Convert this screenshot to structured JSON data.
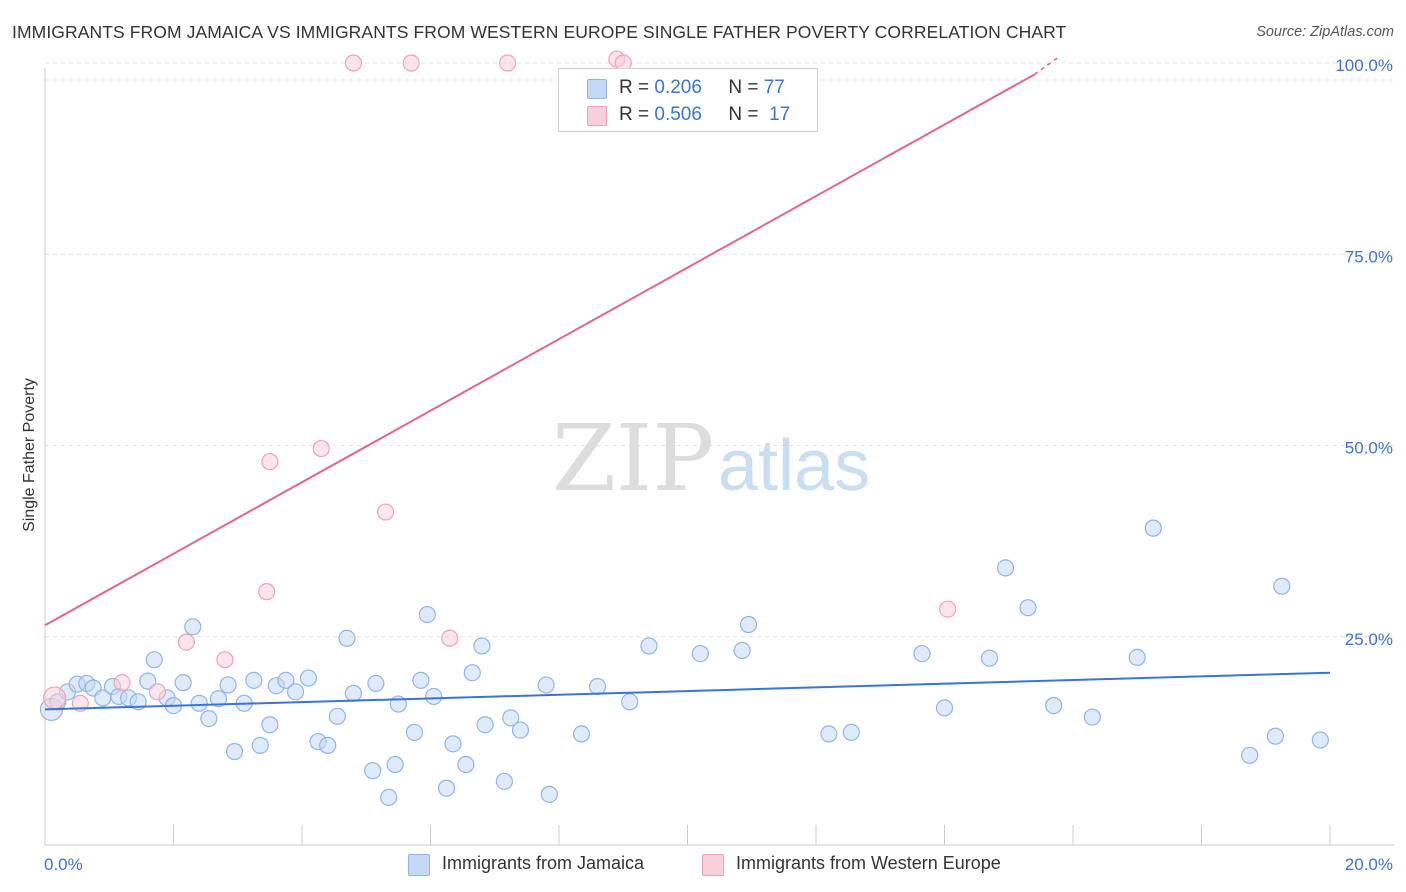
{
  "title": "IMMIGRANTS FROM JAMAICA VS IMMIGRANTS FROM WESTERN EUROPE SINGLE FATHER POVERTY CORRELATION CHART",
  "source": "Source: ZipAtlas.com",
  "watermark": {
    "zip": "ZIP",
    "atlas": "atlas"
  },
  "legend": {
    "rows": [
      {
        "r_label": "R =",
        "r_value": "0.206",
        "n_label": "N =",
        "n_value": "77",
        "color": "#8fb5e8",
        "fill": "#c4d9f5"
      },
      {
        "r_label": "R =",
        "r_value": "0.506",
        "n_label": "N =",
        "n_value": "17",
        "color": "#f2a0b8",
        "fill": "#f9cfdc"
      }
    ]
  },
  "bottom_legend": [
    {
      "label": "Immigrants from Jamaica",
      "color": "#8fb5e8",
      "fill": "#c4d9f5"
    },
    {
      "label": "Immigrants from Western Europe",
      "color": "#f2a0b8",
      "fill": "#f9cfdc"
    }
  ],
  "chart_data": {
    "type": "scatter",
    "title": "IMMIGRANTS FROM JAMAICA VS IMMIGRANTS FROM WESTERN EUROPE SINGLE FATHER POVERTY CORRELATION CHART",
    "xlabel": "",
    "ylabel": "Single Father Poverty",
    "xlim": [
      0,
      20
    ],
    "ylim": [
      0,
      100
    ],
    "x_tick_labels": [
      "0.0%",
      "20.0%"
    ],
    "y_tick_labels": [
      "25.0%",
      "50.0%",
      "75.0%",
      "100.0%"
    ],
    "y_ticks": [
      25,
      50,
      75,
      100
    ],
    "x_minor_ticks": [
      2,
      4,
      6,
      8,
      10,
      12,
      14,
      16,
      18,
      20
    ],
    "grid": true,
    "series": [
      {
        "name": "Immigrants from Jamaica",
        "color": "#3b74d1",
        "marker_stroke": "#8fb5e8",
        "marker_fill": "#c4d9f5",
        "trend": {
          "x": [
            0,
            20
          ],
          "y": [
            15.5,
            20.3
          ]
        },
        "points": [
          [
            0.1,
            15.5
          ],
          [
            0.2,
            16.5
          ],
          [
            0.35,
            17.8
          ],
          [
            0.5,
            18.8
          ],
          [
            0.65,
            18.9
          ],
          [
            0.75,
            18.3
          ],
          [
            0.9,
            17.0
          ],
          [
            1.05,
            18.5
          ],
          [
            1.15,
            17.2
          ],
          [
            1.3,
            17.0
          ],
          [
            1.45,
            16.5
          ],
          [
            1.6,
            19.2
          ],
          [
            1.7,
            22.0
          ],
          [
            1.9,
            17.0
          ],
          [
            2.0,
            16.0
          ],
          [
            2.15,
            19.0
          ],
          [
            2.3,
            26.3
          ],
          [
            2.4,
            16.3
          ],
          [
            2.55,
            14.3
          ],
          [
            2.7,
            16.9
          ],
          [
            2.85,
            18.7
          ],
          [
            2.95,
            10.0
          ],
          [
            3.1,
            16.3
          ],
          [
            3.25,
            19.3
          ],
          [
            3.35,
            10.8
          ],
          [
            3.5,
            13.5
          ],
          [
            3.6,
            18.6
          ],
          [
            3.75,
            19.3
          ],
          [
            3.9,
            17.8
          ],
          [
            4.1,
            19.6
          ],
          [
            4.25,
            11.3
          ],
          [
            4.4,
            10.8
          ],
          [
            4.55,
            14.6
          ],
          [
            4.7,
            24.8
          ],
          [
            4.8,
            17.6
          ],
          [
            5.15,
            18.9
          ],
          [
            5.1,
            7.5
          ],
          [
            5.35,
            4.0
          ],
          [
            5.45,
            8.3
          ],
          [
            5.5,
            16.2
          ],
          [
            5.75,
            12.5
          ],
          [
            5.85,
            19.3
          ],
          [
            5.95,
            27.9
          ],
          [
            6.05,
            17.2
          ],
          [
            6.25,
            5.2
          ],
          [
            6.35,
            11.0
          ],
          [
            6.55,
            8.3
          ],
          [
            6.65,
            20.3
          ],
          [
            6.8,
            23.8
          ],
          [
            6.85,
            13.5
          ],
          [
            7.15,
            6.1
          ],
          [
            7.25,
            14.4
          ],
          [
            7.4,
            12.8
          ],
          [
            7.8,
            18.7
          ],
          [
            7.85,
            4.4
          ],
          [
            8.35,
            12.3
          ],
          [
            8.6,
            18.5
          ],
          [
            9.1,
            16.5
          ],
          [
            9.4,
            23.8
          ],
          [
            10.2,
            22.8
          ],
          [
            10.85,
            23.2
          ],
          [
            10.95,
            26.6
          ],
          [
            12.2,
            12.3
          ],
          [
            12.55,
            12.5
          ],
          [
            13.65,
            22.8
          ],
          [
            14.0,
            15.7
          ],
          [
            14.7,
            22.2
          ],
          [
            14.95,
            34.0
          ],
          [
            15.3,
            28.8
          ],
          [
            15.7,
            16.0
          ],
          [
            16.3,
            14.5
          ],
          [
            17.0,
            22.3
          ],
          [
            17.25,
            39.2
          ],
          [
            18.75,
            9.5
          ],
          [
            19.25,
            31.6
          ],
          [
            19.15,
            12.0
          ],
          [
            19.85,
            11.5
          ]
        ]
      },
      {
        "name": "Immigrants from Western Europe",
        "color": "#e0668f",
        "marker_stroke": "#f2a0b8",
        "marker_fill": "#f9cfdc",
        "trend": {
          "x": [
            0,
            15.4
          ],
          "y": [
            26.5,
            98.5
          ],
          "dash_to": [
            15.4,
            100.5
          ]
        },
        "points": [
          [
            0.15,
            17.0
          ],
          [
            0.55,
            16.3
          ],
          [
            1.2,
            19.0
          ],
          [
            1.75,
            17.8
          ],
          [
            2.2,
            24.3
          ],
          [
            2.8,
            22.0
          ],
          [
            3.45,
            30.9
          ],
          [
            3.5,
            47.9
          ],
          [
            4.3,
            49.6
          ],
          [
            5.3,
            41.3
          ],
          [
            6.3,
            24.8
          ],
          [
            8.9,
            100.5
          ],
          [
            14.05,
            28.6
          ],
          [
            4.8,
            100.0
          ],
          [
            5.7,
            100.0
          ],
          [
            7.2,
            100.0
          ],
          [
            9.0,
            100.0
          ]
        ]
      }
    ]
  }
}
